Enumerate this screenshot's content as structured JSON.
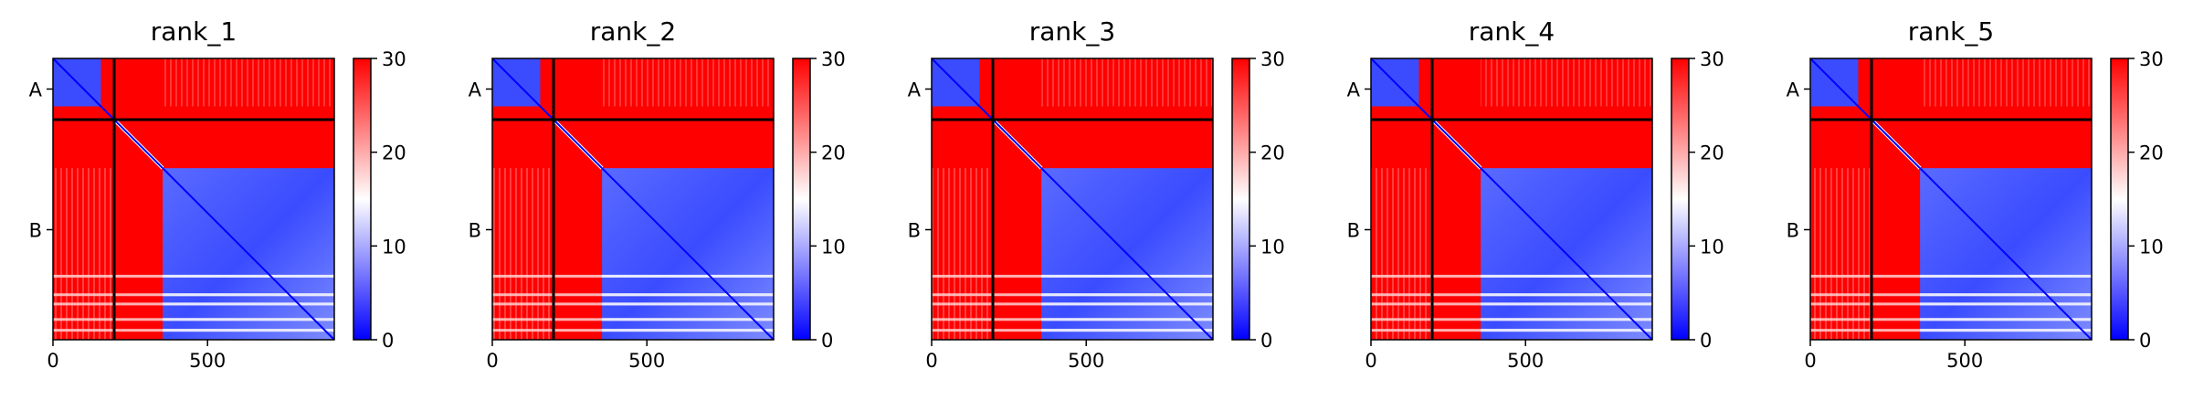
{
  "chart_data": {
    "type": "heatmap",
    "colormap": {
      "name": "bwr",
      "low": "#0000ff",
      "mid": "#ffffff",
      "high": "#ff0000"
    },
    "value_range": [
      0,
      30
    ],
    "colorbar_ticks": [
      0,
      10,
      20,
      30
    ],
    "x_ticks": [
      0,
      500
    ],
    "x_range": [
      0,
      910
    ],
    "y_tick_labels": [
      "A",
      "B"
    ],
    "chain_boundaries": [
      0,
      198,
      910
    ],
    "segment_A_block_end": 155,
    "segment_B_block_start": 355,
    "panels": [
      {
        "title": "rank_1"
      },
      {
        "title": "rank_2"
      },
      {
        "title": "rank_3"
      },
      {
        "title": "rank_4"
      },
      {
        "title": "rank_5"
      }
    ]
  }
}
